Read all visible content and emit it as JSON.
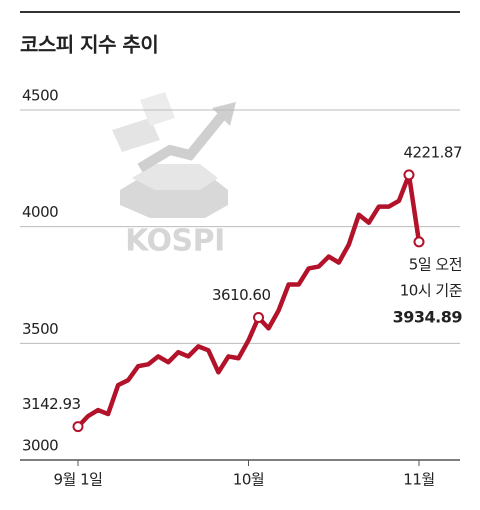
{
  "chart_data": {
    "type": "line",
    "title": "코스피 지수 추이",
    "categories": [
      "9월 1일",
      null,
      null,
      null,
      null,
      null,
      null,
      null,
      null,
      null,
      null,
      null,
      null,
      null,
      null,
      null,
      null,
      "10월",
      null,
      null,
      null,
      null,
      null,
      null,
      null,
      null,
      null,
      null,
      null,
      null,
      null,
      null,
      null,
      null,
      "11월"
    ],
    "series": [
      {
        "name": "KOSPI",
        "color": "#b3122b",
        "values": [
          3142.93,
          3188,
          3214,
          3197,
          3321,
          3342,
          3402,
          3410,
          3444,
          3419,
          3462,
          3444,
          3487,
          3470,
          3376,
          3444,
          3436,
          3513,
          3610.6,
          3564,
          3641,
          3752,
          3752,
          3821,
          3829,
          3872,
          3846,
          3923,
          4051,
          4017,
          4086,
          4086,
          4111,
          4221.87,
          3934.89
        ],
        "value_labels": [
          "3142.93",
          null,
          null,
          null,
          null,
          null,
          null,
          null,
          null,
          null,
          null,
          null,
          null,
          null,
          null,
          null,
          null,
          null,
          "3610.60",
          null,
          null,
          null,
          null,
          null,
          null,
          null,
          null,
          null,
          null,
          null,
          null,
          null,
          null,
          "4221.87",
          "3934.89"
        ]
      }
    ],
    "annotation": [
      "5일 오전",
      "10시 기준"
    ],
    "watermark": "KOSPI",
    "ylim": [
      3000,
      4500
    ],
    "yticks": [
      3000,
      3500,
      4000,
      4500
    ],
    "grid": true
  }
}
